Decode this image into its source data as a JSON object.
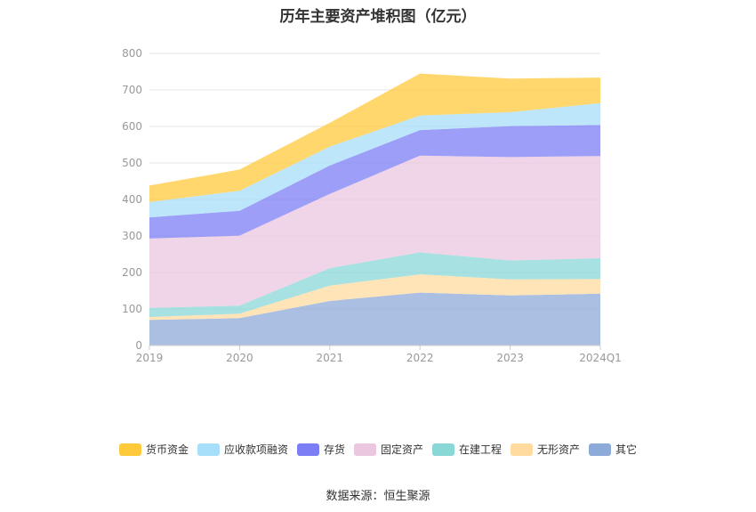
{
  "chart_data": {
    "type": "area",
    "stacked": true,
    "title": "历年主要资产堆积图（亿元）",
    "categories": [
      "2019",
      "2020",
      "2021",
      "2022",
      "2023",
      "2024Q1"
    ],
    "ylim": [
      0,
      800
    ],
    "yticks": [
      "0",
      "100",
      "200",
      "300",
      "400",
      "500",
      "600",
      "700",
      "800"
    ],
    "grid": true,
    "legend_position": "bottom",
    "series": [
      {
        "name": "其它",
        "color": "#8eaad8",
        "values": [
          70,
          75,
          122,
          145,
          137,
          142
        ]
      },
      {
        "name": "无形资产",
        "color": "#ffdba0",
        "values": [
          8,
          12,
          42,
          50,
          44,
          40
        ]
      },
      {
        "name": "在建工程",
        "color": "#8ad7d8",
        "values": [
          25,
          22,
          48,
          60,
          52,
          57
        ]
      },
      {
        "name": "固定资产",
        "color": "#ebc6df",
        "values": [
          190,
          192,
          203,
          265,
          283,
          280
        ]
      },
      {
        "name": "存货",
        "color": "#7b7ef5",
        "values": [
          58,
          68,
          78,
          70,
          85,
          85
        ]
      },
      {
        "name": "应收款项融资",
        "color": "#a7defa",
        "values": [
          42,
          55,
          52,
          40,
          38,
          60
        ]
      },
      {
        "name": "货币资金",
        "color": "#ffc93c",
        "values": [
          45,
          58,
          65,
          115,
          92,
          70
        ]
      }
    ]
  },
  "legend_order": [
    "货币资金",
    "应收款项融资",
    "存货",
    "固定资产",
    "在建工程",
    "无形资产",
    "其它"
  ],
  "source": "数据来源：恒生聚源"
}
